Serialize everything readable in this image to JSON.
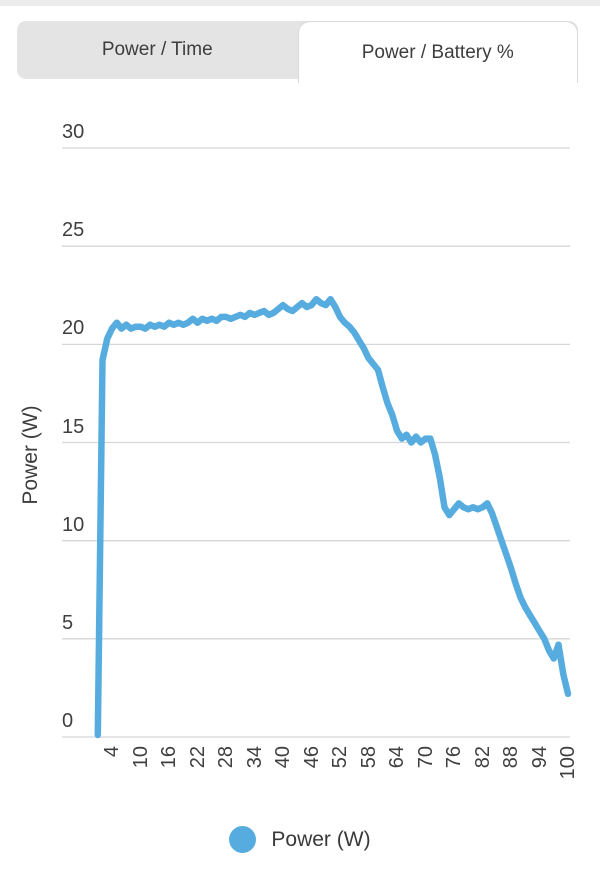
{
  "tabs": {
    "power_time_label": "Power / Time",
    "power_battery_label": "Power / Battery %",
    "active_tab": "Power / Battery %"
  },
  "chart": {
    "y_axis_title": "Power (W)",
    "legend_label": "Power (W)",
    "colors": {
      "line": "#57ACDF",
      "grid": "#d7d7d7",
      "axis_text": "#3f3f3f",
      "tab_bg": "#e4e4e4",
      "tab_border": "#d9d9d9"
    }
  },
  "chart_data": {
    "type": "line",
    "title": "",
    "xlabel": "",
    "ylabel": "Power (W)",
    "legend_position": "bottom",
    "grid": true,
    "xlim": [
      0,
      101
    ],
    "ylim": [
      0,
      30
    ],
    "y_ticks": [
      0,
      5,
      10,
      15,
      20,
      25,
      30
    ],
    "x_ticks": [
      4,
      10,
      16,
      22,
      28,
      34,
      40,
      46,
      52,
      58,
      64,
      70,
      76,
      82,
      88,
      94,
      100
    ],
    "series": [
      {
        "name": "Power (W)",
        "x": [
          1,
          2,
          3,
          4,
          5,
          6,
          7,
          8,
          9,
          10,
          11,
          12,
          13,
          14,
          15,
          16,
          17,
          18,
          19,
          20,
          21,
          22,
          23,
          24,
          25,
          26,
          27,
          28,
          29,
          30,
          31,
          32,
          33,
          34,
          35,
          36,
          37,
          38,
          39,
          40,
          41,
          42,
          43,
          44,
          45,
          46,
          47,
          48,
          49,
          50,
          51,
          52,
          53,
          54,
          55,
          56,
          57,
          58,
          59,
          60,
          61,
          62,
          63,
          64,
          65,
          66,
          67,
          68,
          69,
          70,
          71,
          72,
          73,
          74,
          75,
          76,
          77,
          78,
          79,
          80,
          81,
          82,
          83,
          84,
          85,
          86,
          87,
          88,
          89,
          90,
          91,
          92,
          93,
          94,
          95,
          96,
          97,
          98,
          99,
          100
        ],
        "y": [
          0.1,
          19.2,
          20.3,
          20.8,
          21.1,
          20.8,
          21.0,
          20.8,
          20.9,
          20.9,
          20.8,
          21.0,
          20.9,
          21.0,
          20.9,
          21.1,
          21.0,
          21.1,
          21.0,
          21.1,
          21.3,
          21.1,
          21.3,
          21.2,
          21.3,
          21.2,
          21.4,
          21.4,
          21.3,
          21.4,
          21.5,
          21.4,
          21.6,
          21.5,
          21.6,
          21.7,
          21.5,
          21.6,
          21.8,
          22.0,
          21.8,
          21.7,
          21.9,
          22.1,
          21.9,
          22.0,
          22.3,
          22.1,
          22.0,
          22.3,
          21.9,
          21.4,
          21.1,
          20.9,
          20.6,
          20.2,
          19.8,
          19.3,
          19.0,
          18.7,
          17.8,
          17.0,
          16.4,
          15.6,
          15.2,
          15.4,
          15.0,
          15.3,
          15.0,
          15.2,
          15.2,
          14.4,
          13.2,
          11.7,
          11.3,
          11.6,
          11.9,
          11.7,
          11.6,
          11.7,
          11.6,
          11.7,
          11.9,
          11.4,
          10.7,
          10.0,
          9.3,
          8.6,
          7.8,
          7.1,
          6.6,
          6.2,
          5.8,
          5.4,
          5.0,
          4.4,
          4.0,
          4.7,
          3.2,
          2.2
        ]
      }
    ]
  }
}
